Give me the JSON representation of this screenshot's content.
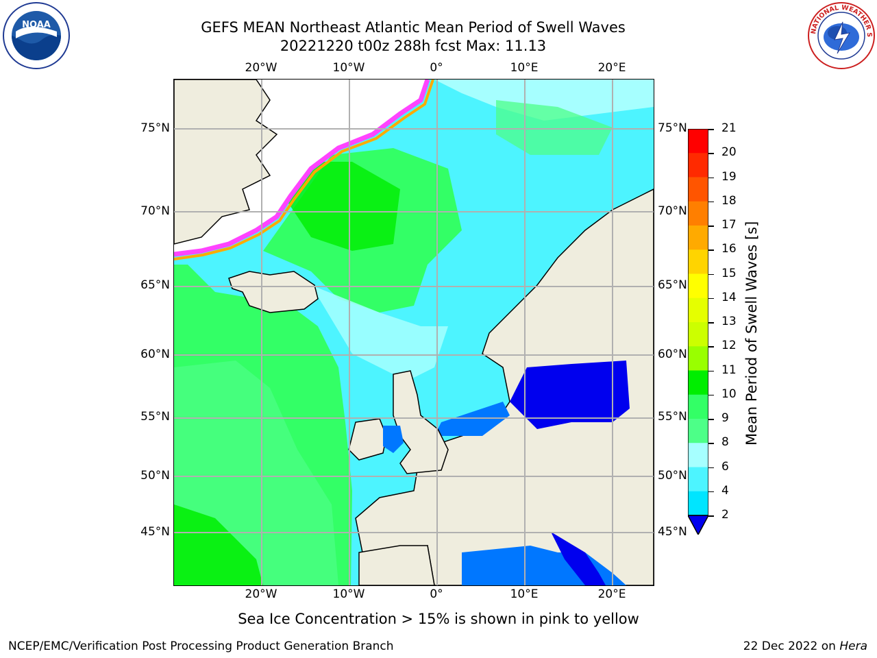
{
  "title": {
    "line1": "GEFS MEAN Northeast Atlantic Mean Period of Swell Waves",
    "line2": "20221220 t00z 288h fcst   Max: 11.13"
  },
  "logos": {
    "left": {
      "name": "noaa-logo",
      "text": "NOAA"
    },
    "right": {
      "name": "nws-logo",
      "text": "NATIONAL WEATHER SERVICE"
    }
  },
  "map": {
    "lon_labels": [
      "20°W",
      "10°W",
      "0°",
      "10°E",
      "20°E"
    ],
    "lat_labels": [
      "75°N",
      "70°N",
      "65°N",
      "60°N",
      "55°N",
      "50°N",
      "45°N"
    ],
    "colors": {
      "land": "#efedde",
      "ice_free_ocean_white": "#ffffff",
      "grid": "#b0b0b0",
      "coast": "#000000"
    }
  },
  "colorbar": {
    "label": "Mean Period of Swell Waves [s]",
    "ticks": [
      "21",
      "20",
      "19",
      "18",
      "17",
      "16",
      "15",
      "14",
      "13",
      "12",
      "11",
      "10",
      "9",
      "8",
      "6",
      "4",
      "2"
    ],
    "colors": [
      "#ff0000",
      "#ff2a00",
      "#ff5500",
      "#ff7f00",
      "#ffaa00",
      "#ffd400",
      "#ffff00",
      "#e5ff00",
      "#ccff00",
      "#99ff00",
      "#00ee00",
      "#33ff66",
      "#4dff88",
      "#a6ffff",
      "#4df4ff",
      "#00e5ff",
      "#0077ff",
      "#0000ee"
    ]
  },
  "footer": {
    "ice_note": "Sea Ice Concentration > 15% is shown in pink to yellow",
    "credit": "NCEP/EMC/Verification Post Processing Product Generation Branch",
    "date": "22 Dec 2022 on",
    "machine": "Hera"
  }
}
